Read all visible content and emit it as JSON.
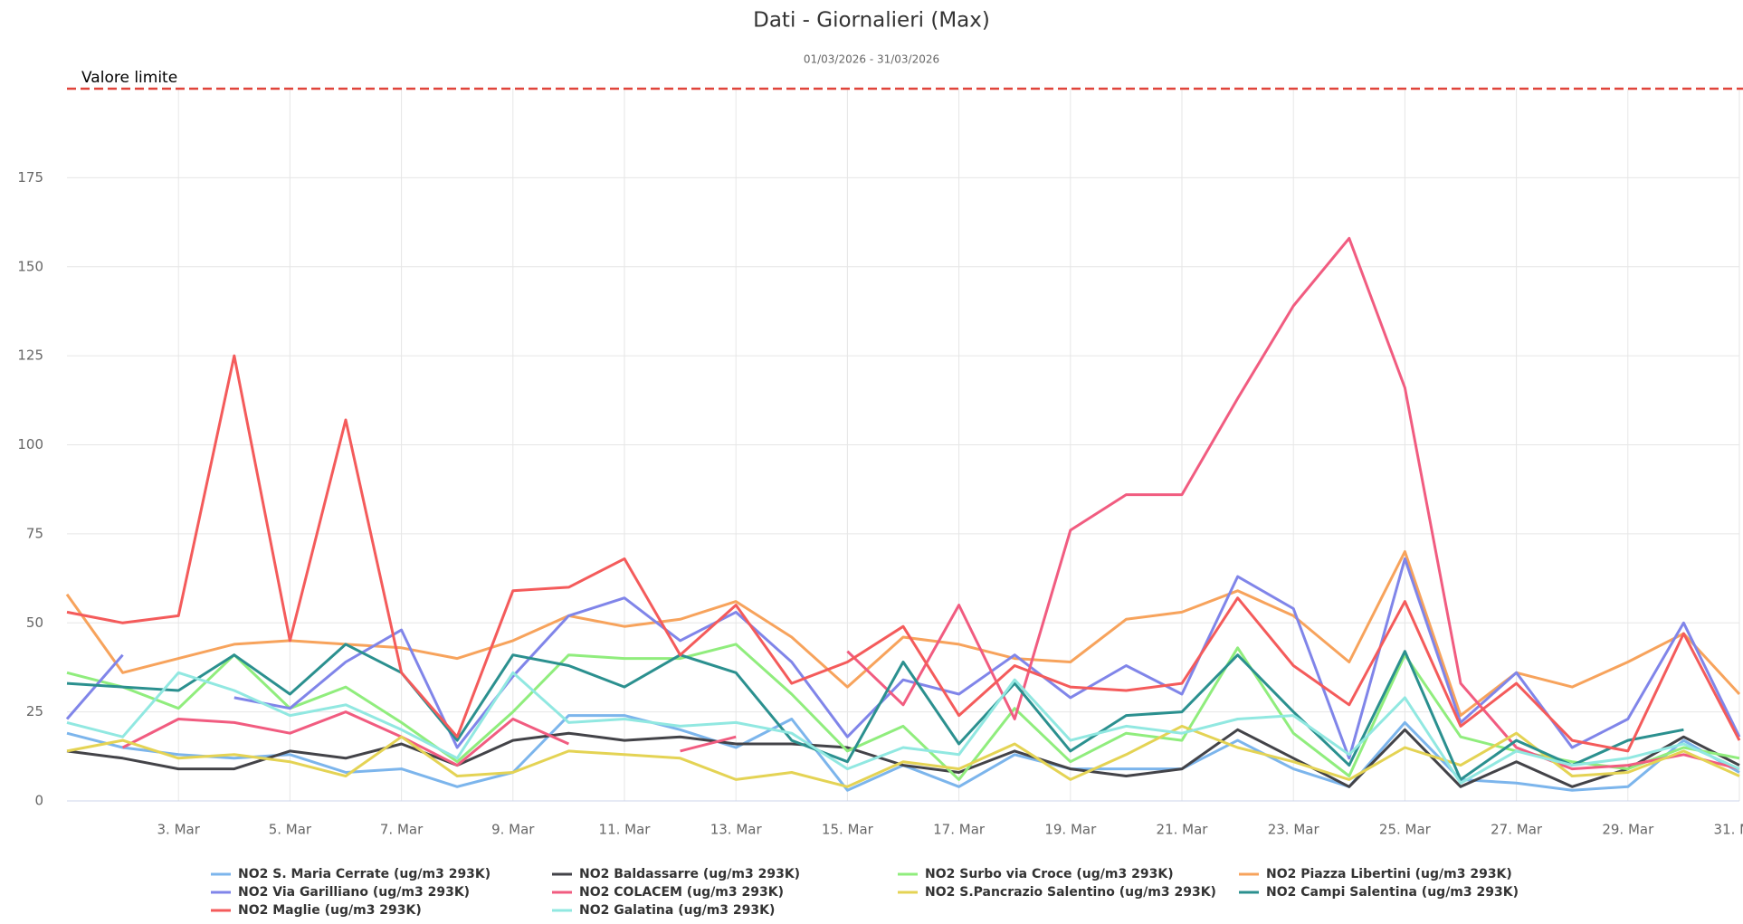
{
  "chart_data": {
    "type": "line",
    "title": "Dati - Giornalieri (Max)",
    "subtitle": "01/03/2026 - 31/03/2026",
    "categories": [
      null,
      null,
      "3. Mar",
      null,
      "5. Mar",
      null,
      "7. Mar",
      null,
      "9. Mar",
      null,
      "11. Mar",
      null,
      "13. Mar",
      null,
      "15. Mar",
      null,
      "17. Mar",
      null,
      "19. Mar",
      null,
      "21. Mar",
      null,
      "23. Mar",
      null,
      "25. Mar",
      null,
      "27. Mar",
      null,
      "29. Mar",
      null,
      "31. Mar"
    ],
    "ylim": [
      0,
      200
    ],
    "yticks": [
      0,
      25,
      50,
      75,
      100,
      125,
      150,
      175
    ],
    "grid": true,
    "plot_lines": [
      {
        "value": 200,
        "label": "Valore limite",
        "color": "#e0443a"
      }
    ],
    "series": [
      {
        "name": "NO2 S. Maria Cerrate (ug/m3 293K)",
        "color": "#7cb5ec",
        "values": [
          19,
          15,
          13,
          12,
          13,
          8,
          9,
          4,
          8,
          24,
          24,
          20,
          15,
          23,
          3,
          10,
          4,
          13,
          9,
          9,
          9,
          17,
          9,
          4,
          22,
          6,
          5,
          3,
          4,
          17,
          8
        ]
      },
      {
        "name": "NO2 Baldassarre (ug/m3 293K)",
        "color": "#434348",
        "values": [
          14,
          12,
          9,
          9,
          14,
          12,
          16,
          10,
          17,
          19,
          17,
          18,
          16,
          16,
          15,
          10,
          8,
          14,
          9,
          7,
          9,
          20,
          12,
          4,
          20,
          4,
          11,
          4,
          9,
          18,
          10
        ]
      },
      {
        "name": "NO2 Surbo via Croce (ug/m3 293K)",
        "color": "#90ed7d",
        "values": [
          36,
          32,
          26,
          41,
          26,
          32,
          22,
          11,
          25,
          41,
          40,
          40,
          44,
          30,
          14,
          21,
          6,
          26,
          11,
          19,
          17,
          43,
          19,
          7,
          41,
          18,
          14,
          11,
          9,
          15,
          12
        ]
      },
      {
        "name": "NO2 Piazza Libertini (ug/m3 293K)",
        "color": "#f7a35c",
        "values": [
          58,
          36,
          40,
          44,
          45,
          44,
          43,
          40,
          45,
          52,
          49,
          51,
          56,
          46,
          32,
          46,
          44,
          40,
          39,
          51,
          53,
          59,
          52,
          39,
          70,
          24,
          36,
          32,
          39,
          47,
          30
        ]
      },
      {
        "name": "NO2 Via Garilliano (ug/m3 293K)",
        "color": "#8085e9",
        "values": [
          23,
          41,
          null,
          29,
          26,
          39,
          48,
          15,
          35,
          52,
          57,
          45,
          53,
          39,
          18,
          34,
          30,
          41,
          29,
          38,
          30,
          63,
          54,
          12,
          68,
          22,
          36,
          15,
          23,
          50,
          18
        ]
      },
      {
        "name": "NO2 COLACEM (ug/m3 293K)",
        "color": "#f15c80",
        "values": [
          null,
          15,
          23,
          22,
          19,
          25,
          18,
          10,
          23,
          16,
          null,
          14,
          18,
          null,
          42,
          27,
          55,
          23,
          76,
          86,
          86,
          113,
          139,
          158,
          116,
          33,
          15,
          9,
          10,
          13,
          9
        ]
      },
      {
        "name": "NO2 S.Pancrazio Salentino (ug/m3 293K)",
        "color": "#e4d354",
        "values": [
          14,
          17,
          12,
          13,
          11,
          7,
          18,
          7,
          8,
          14,
          13,
          12,
          6,
          8,
          4,
          11,
          9,
          16,
          6,
          13,
          21,
          15,
          11,
          6,
          15,
          10,
          19,
          7,
          8,
          14,
          7
        ]
      },
      {
        "name": "NO2 Campi Salentina (ug/m3 293K)",
        "color": "#2b908f",
        "values": [
          33,
          32,
          31,
          41,
          30,
          44,
          36,
          17,
          41,
          38,
          32,
          41,
          36,
          17,
          11,
          39,
          16,
          33,
          14,
          24,
          25,
          41,
          25,
          10,
          42,
          6,
          17,
          10,
          17,
          20,
          null
        ]
      },
      {
        "name": "NO2 Maglie (ug/m3 293K)",
        "color": "#f45b5b",
        "values": [
          53,
          50,
          52,
          125,
          45,
          107,
          36,
          18,
          59,
          60,
          68,
          41,
          55,
          33,
          39,
          49,
          24,
          38,
          32,
          31,
          33,
          57,
          38,
          27,
          56,
          21,
          33,
          17,
          14,
          47,
          17
        ]
      },
      {
        "name": "NO2 Galatina (ug/m3 293K)",
        "color": "#91e8e1",
        "values": [
          22,
          18,
          36,
          31,
          24,
          27,
          20,
          12,
          36,
          22,
          23,
          21,
          22,
          19,
          9,
          15,
          13,
          34,
          17,
          21,
          19,
          23,
          24,
          13,
          29,
          5,
          14,
          10,
          12,
          16,
          9
        ]
      }
    ]
  }
}
